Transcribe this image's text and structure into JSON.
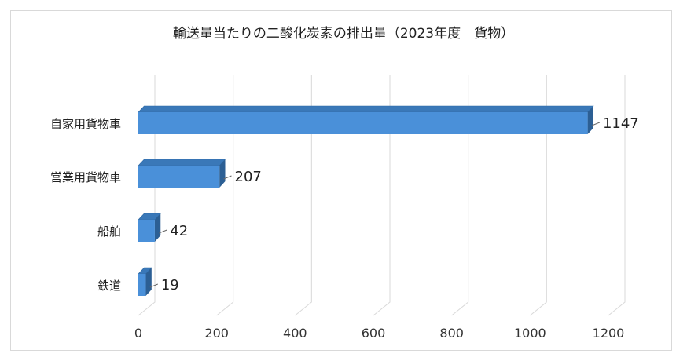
{
  "chart_data": {
    "type": "bar",
    "orientation": "horizontal",
    "title": "輸送量当たりの二酸化炭素の排出量（2023年度　貨物）",
    "categories": [
      "自家用貨物車",
      "営業用貨物車",
      "船舶",
      "鉄道"
    ],
    "values": [
      1147,
      207,
      42,
      19
    ],
    "data_labels": [
      "1147",
      "207",
      "42",
      "19"
    ],
    "xlim": [
      0,
      1200
    ],
    "x_ticks": [
      "0",
      "200",
      "400",
      "600",
      "800",
      "1000",
      "1200"
    ],
    "grid": "vertical",
    "style": "3d-bar",
    "bar_color": "#4a90d9"
  }
}
